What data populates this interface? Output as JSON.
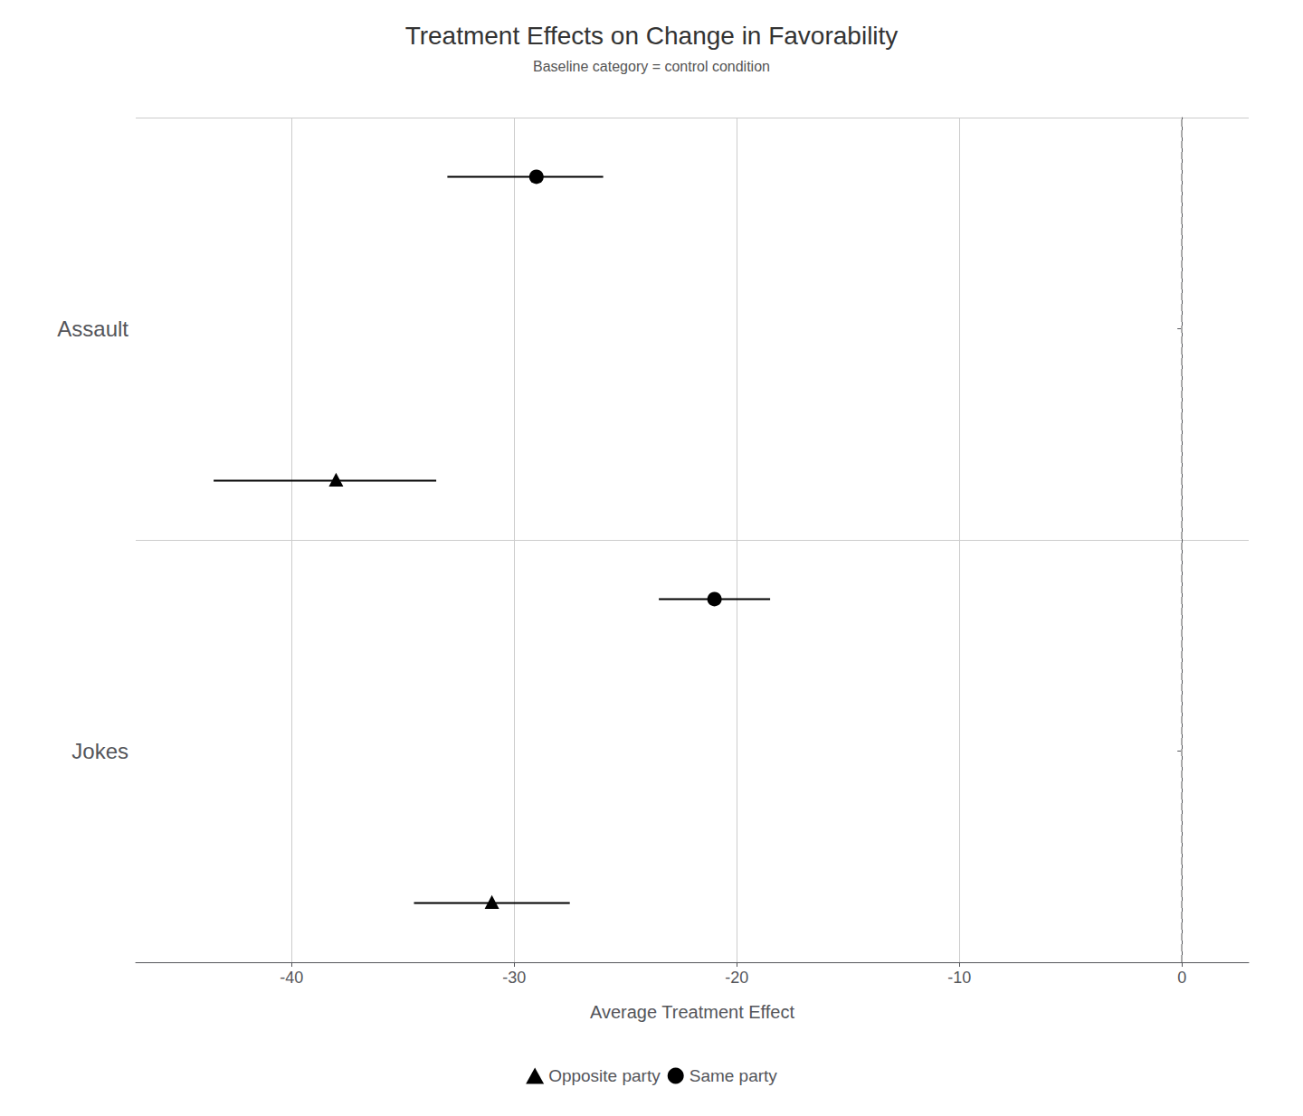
{
  "chart_data": {
    "type": "dot",
    "title": "Treatment Effects on Change in Favorability",
    "subtitle": "Baseline category = control condition",
    "xlabel": "Average Treatment Effect",
    "categories": [
      "Jokes",
      "Assault"
    ],
    "series": [
      {
        "name": "Opposite party",
        "marker": "triangle",
        "color": "#000000",
        "values": [
          -31.0,
          -38.0
        ],
        "ci_low": [
          -34.5,
          -43.5
        ],
        "ci_high": [
          -27.5,
          -33.5
        ]
      },
      {
        "name": "Same party",
        "marker": "circle",
        "color": "#000000",
        "values": [
          -21.0,
          -29.0
        ],
        "ci_low": [
          -23.5,
          -33.0
        ],
        "ci_high": [
          -18.5,
          -26.0
        ]
      }
    ],
    "xlim": [
      -47,
      3
    ],
    "xticks": [
      -40,
      -30,
      -20,
      -10,
      0
    ],
    "grid": true,
    "legend": "bottom",
    "reference_lines": [
      {
        "x": 0,
        "color": "#aaaaaa",
        "line_style": "dashed"
      }
    ]
  }
}
